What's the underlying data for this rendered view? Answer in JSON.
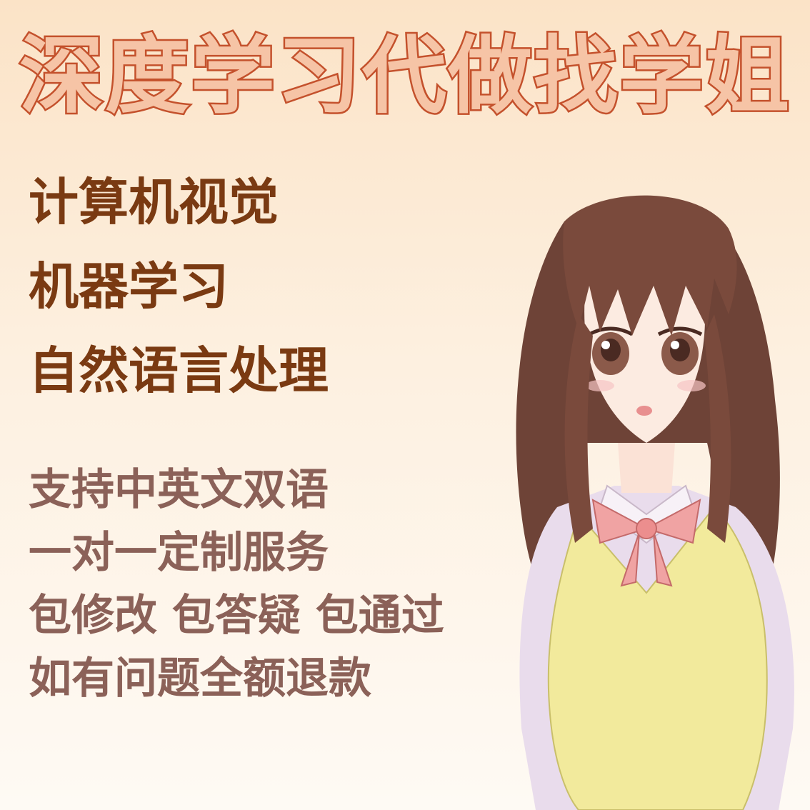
{
  "headline": "深度学习代做找学姐",
  "topics": [
    "计算机视觉",
    "机器学习",
    "自然语言处理"
  ],
  "services": [
    "支持中英文双语",
    "一对一定制服务",
    "包修改 包答疑 包通过",
    "如有问题全额退款"
  ],
  "colors": {
    "headline_fill": "#f6c4a6",
    "headline_stroke": "#c4512c",
    "topic_text": "#7a3a12",
    "service_text": "#8b6158",
    "hair": "#6e4337",
    "skin": "#fcebe1",
    "vest": "#f2ea9c",
    "bow": "#f0a3a3",
    "shirt": "#e9dcec"
  },
  "illustration": "anime-girl-illustration"
}
